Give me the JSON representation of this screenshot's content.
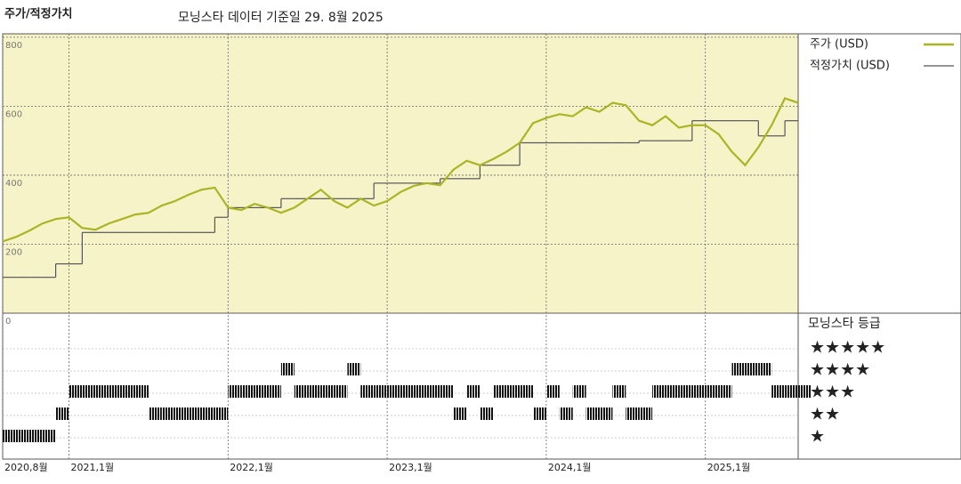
{
  "chart_data": {
    "type": "line",
    "title": "주가/적정가치",
    "subtitle": "모닝스타 데이터 기준일 29. 8월 2025",
    "x": [
      "2020-08",
      "2020-09",
      "2020-10",
      "2020-11",
      "2020-12",
      "2021-01",
      "2021-02",
      "2021-03",
      "2021-04",
      "2021-05",
      "2021-06",
      "2021-07",
      "2021-08",
      "2021-09",
      "2021-10",
      "2021-11",
      "2021-12",
      "2022-01",
      "2022-02",
      "2022-03",
      "2022-04",
      "2022-05",
      "2022-06",
      "2022-07",
      "2022-08",
      "2022-09",
      "2022-10",
      "2022-11",
      "2022-12",
      "2023-01",
      "2023-02",
      "2023-03",
      "2023-04",
      "2023-05",
      "2023-06",
      "2023-07",
      "2023-08",
      "2023-09",
      "2023-10",
      "2023-11",
      "2023-12",
      "2024-01",
      "2024-02",
      "2024-03",
      "2024-04",
      "2024-05",
      "2024-06",
      "2024-07",
      "2024-08",
      "2024-09",
      "2024-10",
      "2024-11",
      "2024-12",
      "2025-01",
      "2025-02",
      "2025-03",
      "2025-04",
      "2025-05",
      "2025-06",
      "2025-07",
      "2025-08"
    ],
    "series": [
      {
        "name": "주가 (USD)",
        "color": "#aab424",
        "values": [
          208,
          221,
          239,
          260,
          273,
          278,
          247,
          242,
          260,
          273,
          286,
          291,
          312,
          325,
          343,
          358,
          364,
          306,
          299,
          317,
          306,
          291,
          306,
          332,
          358,
          325,
          306,
          332,
          312,
          325,
          351,
          369,
          377,
          371,
          416,
          442,
          429,
          447,
          468,
          494,
          551,
          566,
          577,
          571,
          597,
          584,
          610,
          603,
          558,
          545,
          571,
          538,
          545,
          545,
          519,
          468,
          429,
          481,
          545,
          623,
          610
        ]
      },
      {
        "name": "적정가치 (USD)",
        "color": "#555555",
        "values": [
          104,
          104,
          104,
          104,
          143,
          143,
          234,
          234,
          234,
          234,
          234,
          234,
          234,
          234,
          234,
          234,
          278,
          306,
          306,
          306,
          306,
          332,
          332,
          332,
          332,
          332,
          332,
          332,
          377,
          377,
          377,
          377,
          377,
          390,
          390,
          390,
          429,
          429,
          429,
          494,
          494,
          494,
          494,
          494,
          494,
          494,
          494,
          494,
          500,
          500,
          500,
          500,
          558,
          558,
          558,
          558,
          558,
          514,
          514,
          558,
          558
        ]
      }
    ],
    "xlim": [
      "2020-08",
      "2025-08"
    ],
    "xticks": [
      {
        "value": "2020-08",
        "label": "2020,8월"
      },
      {
        "value": "2021-01",
        "label": "2021,1월"
      },
      {
        "value": "2022-01",
        "label": "2022,1월"
      },
      {
        "value": "2023-01",
        "label": "2023,1월"
      },
      {
        "value": "2024-01",
        "label": "2024,1월"
      },
      {
        "value": "2025-01",
        "label": "2025,1월"
      }
    ],
    "ylim": [
      0,
      810
    ],
    "yticks": [
      0,
      200,
      400,
      600,
      800
    ],
    "grid": true,
    "ratings": {
      "title": "모닝스타 등급",
      "levels": [
        "★★★★★",
        "★★★★",
        "★★★",
        "★★",
        "★"
      ],
      "values": [
        1,
        1,
        1,
        1,
        2,
        3,
        3,
        3,
        3,
        3,
        3,
        2,
        2,
        2,
        2,
        2,
        2,
        3,
        3,
        3,
        3,
        4,
        3,
        3,
        3,
        3,
        4,
        3,
        3,
        3,
        3,
        3,
        3,
        3,
        2,
        3,
        2,
        3,
        3,
        3,
        2,
        3,
        2,
        3,
        2,
        2,
        3,
        2,
        2,
        3,
        3,
        3,
        3,
        3,
        3,
        4,
        4,
        4,
        3,
        3,
        3
      ]
    }
  }
}
